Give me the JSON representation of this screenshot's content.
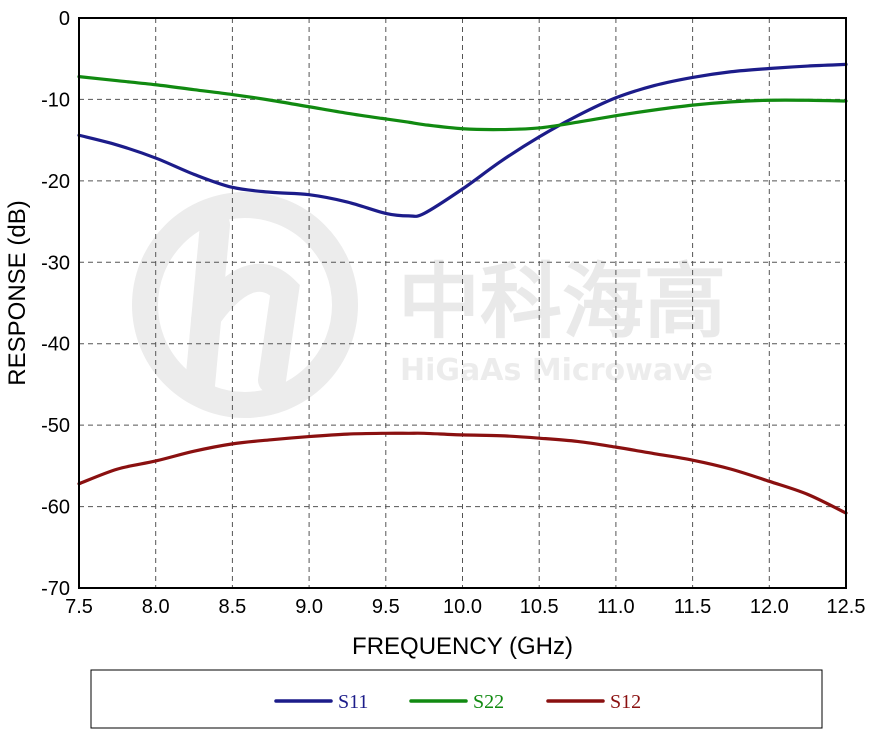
{
  "watermark": {
    "brand_cn": "中科海高",
    "brand_en": "HiGaAs Microwave"
  },
  "chart_data": {
    "type": "line",
    "xlabel": "FREQUENCY (GHz)",
    "ylabel": "RESPONSE (dB)",
    "xlim": [
      7.5,
      12.5
    ],
    "ylim": [
      -70,
      0
    ],
    "xticks": [
      "7.5",
      "8.0",
      "8.5",
      "9.0",
      "9.5",
      "10.0",
      "10.5",
      "11.0",
      "11.5",
      "12.0",
      "12.5"
    ],
    "yticks": [
      "0",
      "-10",
      "-20",
      "-30",
      "-40",
      "-50",
      "-60",
      "-70"
    ],
    "grid": true,
    "legend_position": "bottom",
    "x": [
      7.5,
      7.75,
      8.0,
      8.25,
      8.5,
      8.75,
      9.0,
      9.25,
      9.5,
      9.65,
      9.75,
      10.0,
      10.25,
      10.5,
      10.75,
      11.0,
      11.25,
      11.5,
      11.75,
      12.0,
      12.25,
      12.5
    ],
    "series": [
      {
        "name": "S11",
        "color": "#1c1c8a",
        "values": [
          -14.4,
          -15.6,
          -17.2,
          -19.2,
          -20.8,
          -21.4,
          -21.7,
          -22.6,
          -24.0,
          -24.3,
          -24.0,
          -21.0,
          -17.6,
          -14.6,
          -12.0,
          -9.8,
          -8.3,
          -7.3,
          -6.6,
          -6.2,
          -5.9,
          -5.7
        ]
      },
      {
        "name": "S22",
        "color": "#118a11",
        "values": [
          -7.2,
          -7.7,
          -8.2,
          -8.8,
          -9.4,
          -10.1,
          -10.9,
          -11.7,
          -12.4,
          -12.8,
          -13.1,
          -13.6,
          -13.7,
          -13.5,
          -12.8,
          -12.0,
          -11.3,
          -10.7,
          -10.3,
          -10.1,
          -10.1,
          -10.2
        ]
      },
      {
        "name": "S12",
        "color": "#8a1010",
        "values": [
          -57.2,
          -55.4,
          -54.4,
          -53.2,
          -52.3,
          -51.8,
          -51.4,
          -51.1,
          -51.0,
          -51.0,
          -51.0,
          -51.2,
          -51.3,
          -51.6,
          -52.0,
          -52.7,
          -53.5,
          -54.3,
          -55.4,
          -56.9,
          -58.5,
          -60.8
        ]
      }
    ]
  }
}
